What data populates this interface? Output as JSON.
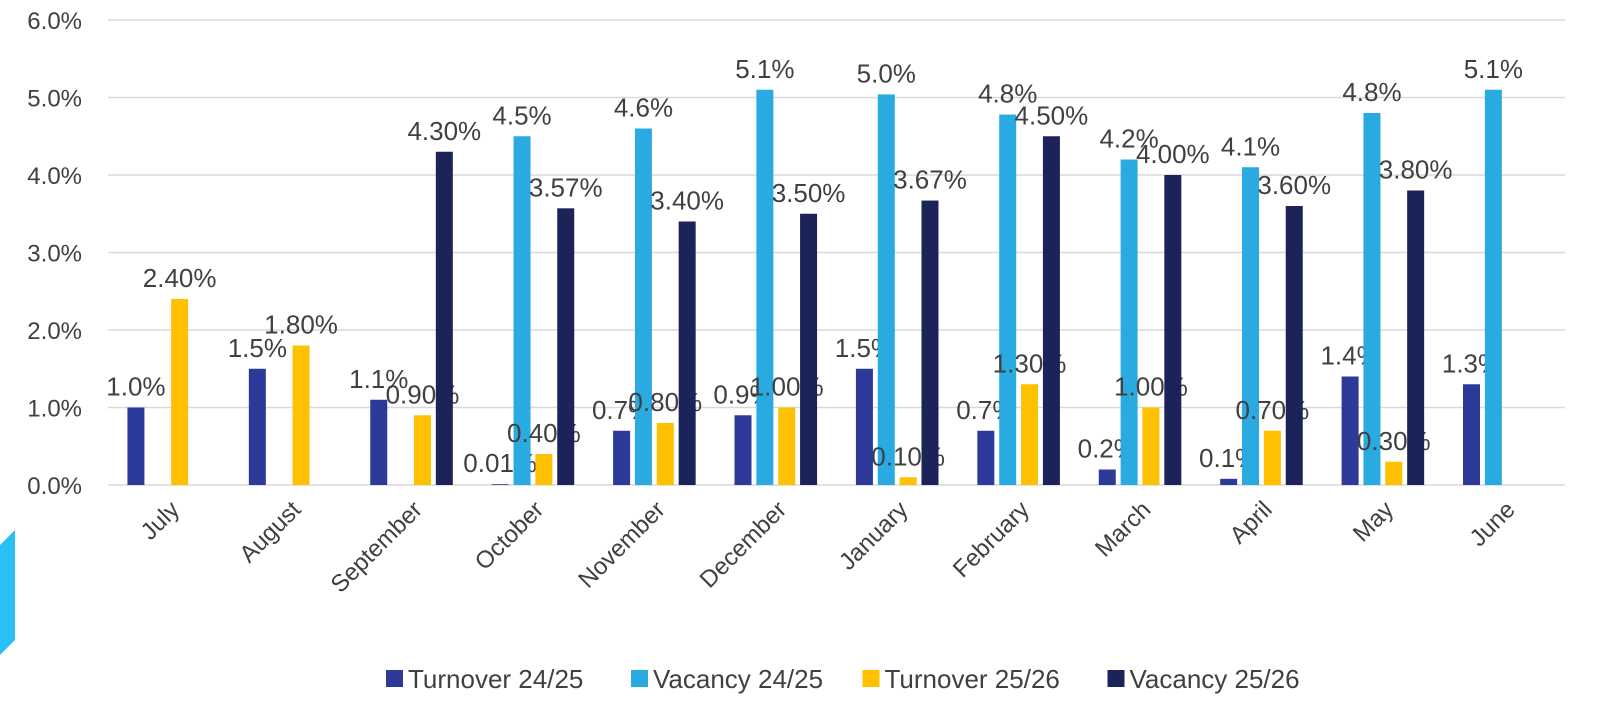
{
  "chart_data": {
    "type": "bar",
    "categories": [
      "July",
      "August",
      "September",
      "October",
      "November",
      "December",
      "January",
      "February",
      "March",
      "April",
      "May",
      "June"
    ],
    "series": [
      {
        "name": "Turnover 24/25",
        "color": "#2e3a9a",
        "values": [
          1.0,
          1.5,
          1.1,
          0.01,
          0.7,
          0.9,
          1.5,
          0.7,
          0.2,
          0.08,
          1.4,
          1.3
        ],
        "value_labels": [
          "1.0%",
          "1.5%",
          "1.1%",
          "0.01%",
          "0.7%",
          "0.9%",
          "1.5%",
          "0.7%",
          "0.2%",
          "0.1%",
          "1.4%",
          "1.3%"
        ]
      },
      {
        "name": "Vacancy 24/25",
        "color": "#29abe2",
        "values": [
          null,
          null,
          null,
          4.5,
          4.6,
          5.1,
          5.04,
          4.78,
          4.2,
          4.1,
          4.8,
          5.1
        ],
        "value_labels": [
          null,
          null,
          null,
          "4.5%",
          "4.6%",
          "5.1%",
          "5.0%",
          "4.8%",
          "4.2%",
          "4.1%",
          "4.8%",
          "5.1%"
        ]
      },
      {
        "name": "Turnover 25/26",
        "color": "#ffc000",
        "values": [
          2.4,
          1.8,
          0.9,
          0.4,
          0.8,
          1.0,
          0.1,
          1.3,
          1.0,
          0.7,
          0.3,
          null
        ],
        "value_labels": [
          "2.40%",
          "1.80%",
          "0.90%",
          "0.40%",
          "0.80%",
          "1.00%",
          "0.10%",
          "1.30%",
          "1.00%",
          "0.70%",
          "0.30%",
          null
        ]
      },
      {
        "name": "Vacancy 25/26",
        "color": "#1b2358",
        "values": [
          null,
          null,
          4.3,
          3.57,
          3.4,
          3.5,
          3.67,
          4.5,
          4.0,
          3.6,
          3.8,
          null
        ],
        "value_labels": [
          null,
          null,
          "4.30%",
          "3.57%",
          "3.40%",
          "3.50%",
          "3.67%",
          "4.50%",
          "4.00%",
          "3.60%",
          "3.80%",
          null
        ]
      }
    ],
    "ylim": [
      0,
      6
    ],
    "yticks": [
      {
        "value": 0,
        "label": "0.0%"
      },
      {
        "value": 1,
        "label": "1.0%"
      },
      {
        "value": 2,
        "label": "2.0%"
      },
      {
        "value": 3,
        "label": "3.0%"
      },
      {
        "value": 4,
        "label": "4.0%"
      },
      {
        "value": 5,
        "label": "5.0%"
      },
      {
        "value": 6,
        "label": "6.0%"
      }
    ],
    "grid": true,
    "legend": "bottom"
  }
}
